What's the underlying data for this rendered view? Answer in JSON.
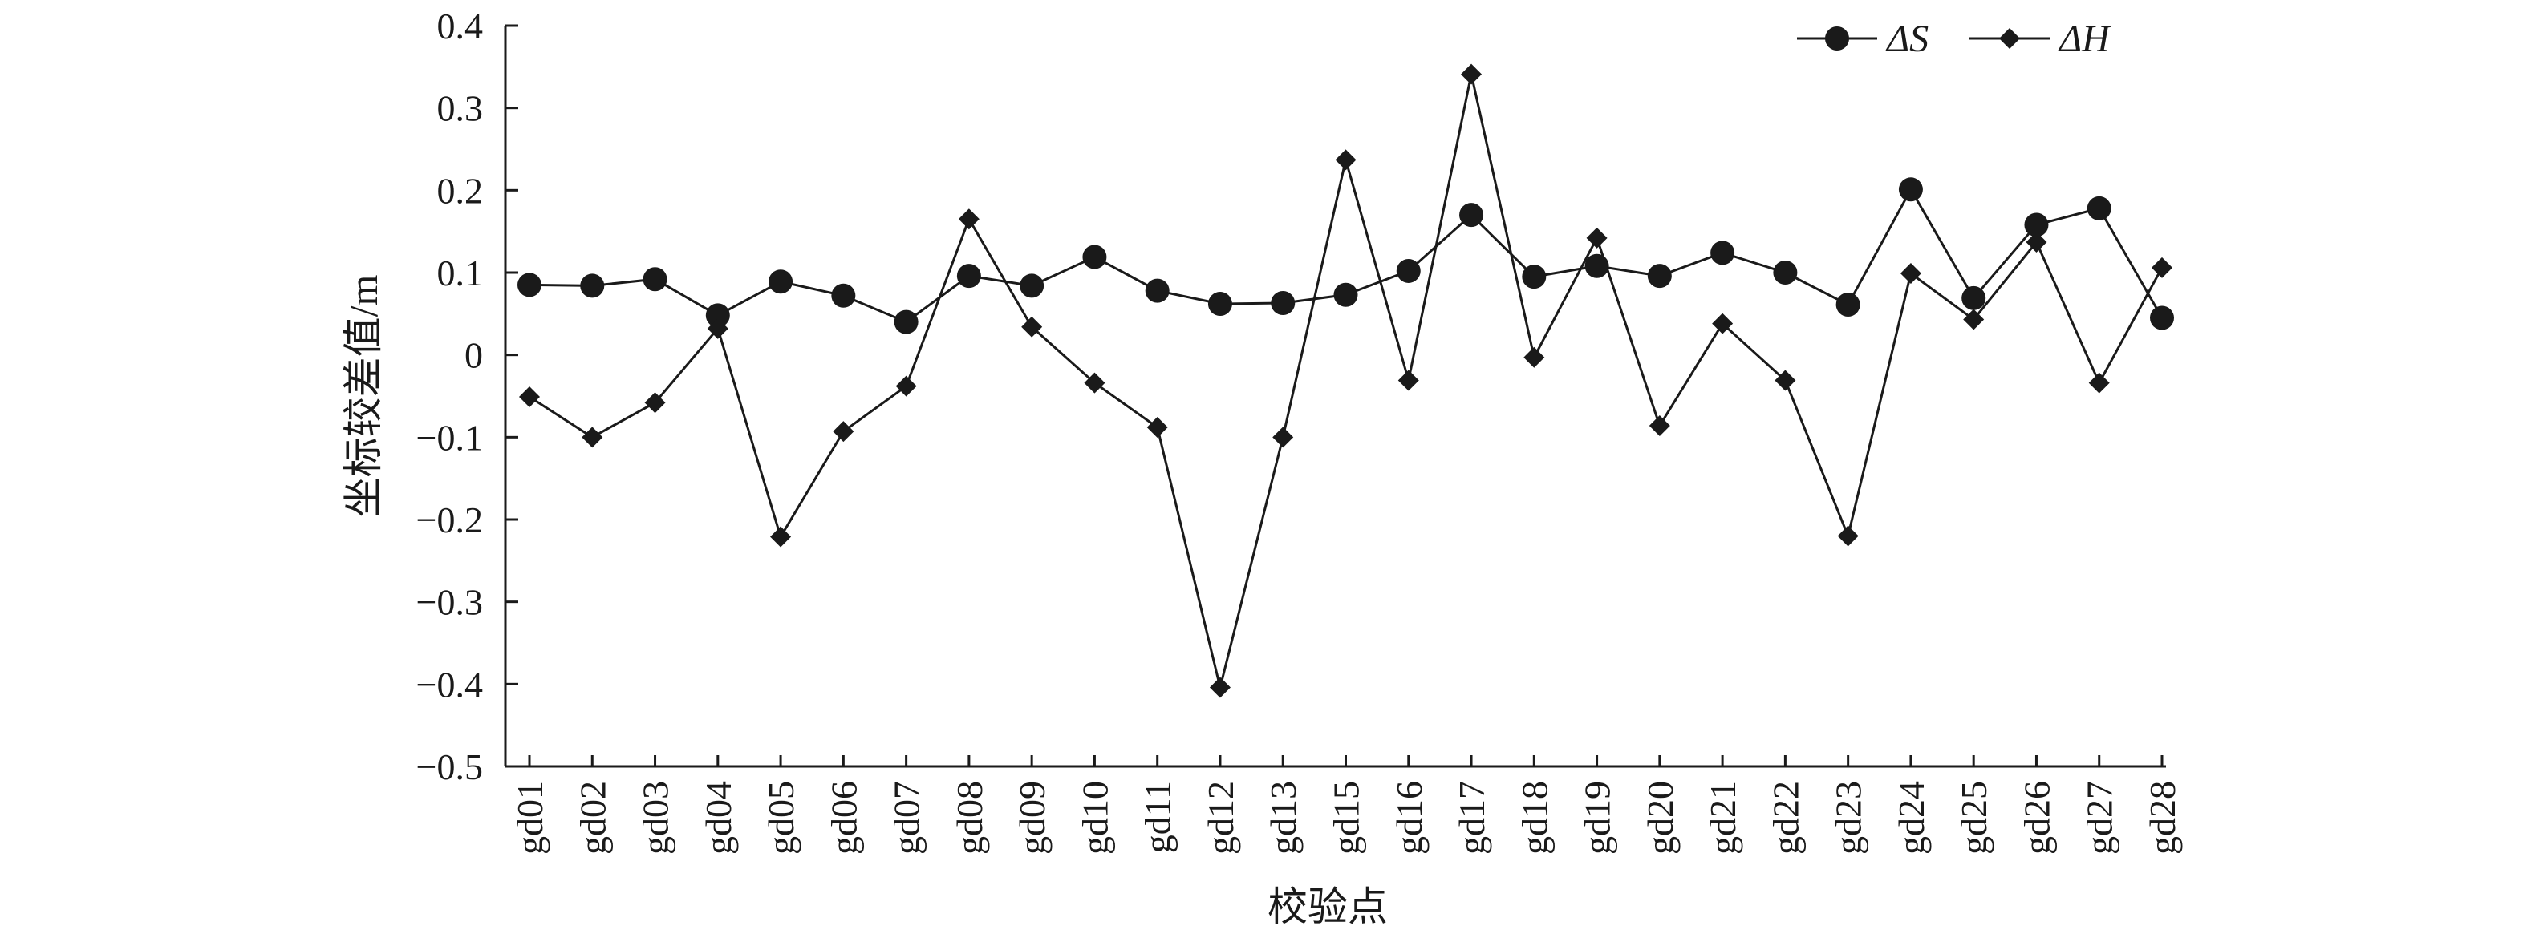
{
  "chart_data": {
    "type": "line",
    "title": "",
    "xlabel": "校验点",
    "ylabel": "坐标较差值/m",
    "ylim": [
      -0.5,
      0.4
    ],
    "yticks": [
      0.4,
      0.3,
      0.2,
      0.1,
      0,
      -0.1,
      -0.2,
      -0.3,
      -0.4,
      -0.5
    ],
    "ytick_labels": [
      "0.4",
      "0.3",
      "0.2",
      "0.1",
      "0",
      "−0.1",
      "−0.2",
      "−0.3",
      "−0.4",
      "−0.5"
    ],
    "categories": [
      "gd01",
      "gd02",
      "gd03",
      "gd04",
      "gd05",
      "gd06",
      "gd07",
      "gd08",
      "gd09",
      "gd10",
      "gd11",
      "gd12",
      "gd13",
      "gd15",
      "gd16",
      "gd17",
      "gd18",
      "gd19",
      "gd20",
      "gd21",
      "gd22",
      "gd23",
      "gd24",
      "gd25",
      "gd26",
      "gd27",
      "gd28"
    ],
    "series": [
      {
        "name": "ΔS",
        "marker": "circle",
        "values": [
          0.085,
          0.084,
          0.092,
          0.048,
          0.089,
          0.072,
          0.04,
          0.096,
          0.084,
          0.119,
          0.078,
          0.062,
          0.063,
          0.073,
          0.102,
          0.17,
          0.095,
          0.108,
          0.096,
          0.124,
          0.1,
          0.061,
          0.201,
          0.069,
          0.158,
          0.178,
          0.045
        ]
      },
      {
        "name": "ΔH",
        "marker": "diamond",
        "values": [
          -0.051,
          -0.1,
          -0.058,
          0.032,
          -0.221,
          -0.093,
          -0.038,
          0.165,
          0.034,
          -0.034,
          -0.088,
          -0.404,
          -0.1,
          0.237,
          -0.031,
          0.341,
          -0.003,
          0.142,
          -0.086,
          0.038,
          -0.031,
          -0.22,
          0.099,
          0.043,
          0.137,
          -0.034,
          0.106
        ]
      }
    ],
    "legend": {
      "position": "top-right",
      "entries": [
        "ΔS",
        "ΔH"
      ]
    },
    "grid": false
  }
}
